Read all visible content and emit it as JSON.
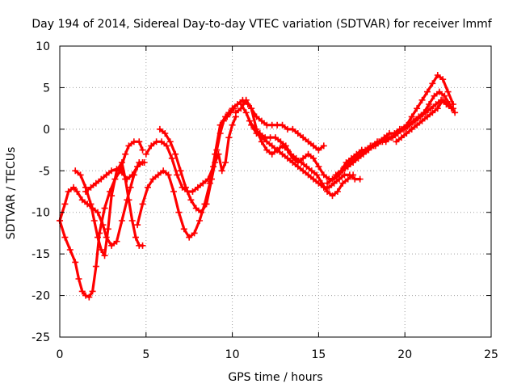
{
  "chart_data": {
    "type": "line",
    "title": "Day 194 of 2014, Sidereal Day-to-day VTEC variation (SDTVAR) for receiver lmmf",
    "xlabel": "GPS time / hours",
    "ylabel": "SDTVAR / TECUs",
    "xlim": [
      0,
      25
    ],
    "ylim": [
      -25,
      10
    ],
    "xticks": [
      0,
      5,
      10,
      15,
      20,
      25
    ],
    "yticks": [
      -25,
      -20,
      -15,
      -10,
      -5,
      0,
      5,
      10
    ],
    "xtick_labels": [
      "0",
      "5",
      "10",
      "15",
      "20",
      "25"
    ],
    "ytick_labels": [
      "-25",
      "-20",
      "-15",
      "-10",
      "-5",
      "0",
      "5",
      "10"
    ],
    "grid": true,
    "legend": "none",
    "marker": "+",
    "color": "#ff0000",
    "series": [
      {
        "name": "arc-1",
        "x": [
          0.0,
          0.3,
          0.6,
          0.9,
          1.1,
          1.3,
          1.5,
          1.7,
          1.9,
          2.1,
          2.3,
          2.6,
          2.9,
          3.2,
          3.5,
          3.8,
          4.0,
          4.3,
          4.6,
          4.8
        ],
        "y": [
          -11,
          -13,
          -14.5,
          -16,
          -18,
          -19.5,
          -20,
          -20.2,
          -19.5,
          -16.5,
          -12.5,
          -9.5,
          -7.5,
          -6,
          -5,
          -3,
          -2,
          -1.5,
          -1.5,
          -2.5
        ]
      },
      {
        "name": "arc-2",
        "x": [
          0.0,
          0.3,
          0.5,
          0.8,
          1.0,
          1.3,
          1.6,
          1.9,
          2.2,
          2.5,
          2.7,
          3.0,
          3.3,
          3.6,
          3.9,
          4.1,
          4.3,
          4.6,
          4.9
        ],
        "y": [
          -11,
          -9,
          -7.5,
          -7,
          -7.5,
          -8.5,
          -9,
          -9.5,
          -10,
          -11.5,
          -13,
          -14,
          -13.5,
          -11,
          -8.5,
          -7,
          -5.5,
          -4,
          -4
        ]
      },
      {
        "name": "arc-3",
        "x": [
          0.9,
          1.2,
          1.5,
          1.8,
          2.0,
          2.2,
          2.4,
          2.6,
          2.8,
          3.0,
          3.3,
          3.6,
          3.8,
          4.0,
          4.2,
          4.4,
          4.6,
          4.8
        ],
        "y": [
          -5,
          -5.5,
          -7,
          -9,
          -11,
          -13,
          -14.5,
          -15.2,
          -12,
          -8,
          -5,
          -4,
          -6,
          -8.5,
          -11,
          -13,
          -14,
          -14
        ]
      },
      {
        "name": "arc-4",
        "x": [
          1.5,
          1.8,
          2.1,
          2.4,
          2.7,
          3.0,
          3.3,
          3.6,
          3.9,
          4.2,
          4.5,
          4.8
        ],
        "y": [
          -7.5,
          -7,
          -6.5,
          -6,
          -5.5,
          -5,
          -4.8,
          -5.2,
          -6,
          -5.5,
          -4.5,
          -4
        ]
      },
      {
        "name": "arc-5",
        "x": [
          4.5,
          4.8,
          5.1,
          5.4,
          5.7,
          6.0,
          6.3,
          6.6,
          6.9,
          7.2,
          7.5,
          7.8,
          8.1,
          8.4,
          8.7,
          9.0,
          9.3,
          9.6,
          9.8,
          10.0,
          10.3,
          10.6,
          10.9
        ],
        "y": [
          -11.5,
          -9,
          -7,
          -6,
          -5.5,
          -5,
          -5.5,
          -7.5,
          -10,
          -12,
          -13,
          -12.5,
          -11,
          -9,
          -6.5,
          -3,
          0.5,
          1.5,
          2,
          2.5,
          3,
          3.5,
          3
        ]
      },
      {
        "name": "arc-6",
        "x": [
          5.0,
          5.3,
          5.6,
          5.9,
          6.2,
          6.5,
          6.8,
          7.1,
          7.4,
          7.7,
          8.0,
          8.3,
          8.6,
          8.9,
          9.1,
          9.3,
          9.5,
          9.7,
          9.9,
          10.1
        ],
        "y": [
          -3,
          -2,
          -1.5,
          -1.5,
          -2,
          -3.5,
          -5.5,
          -7,
          -7.5,
          -7.5,
          -7,
          -6.5,
          -6,
          -4.5,
          -2.5,
          -0.5,
          1,
          1.5,
          2,
          2.5
        ]
      },
      {
        "name": "arc-7",
        "x": [
          5.8,
          6.1,
          6.4,
          6.7,
          7.0,
          7.3,
          7.6,
          7.9,
          8.2,
          8.5,
          8.8,
          9.0,
          9.2,
          9.4,
          9.6,
          9.8,
          10.0,
          10.2
        ],
        "y": [
          0,
          -0.5,
          -1.5,
          -3,
          -5,
          -7,
          -8.5,
          -9.5,
          -10,
          -9,
          -6,
          -4,
          -3,
          -5,
          -4,
          -1,
          0.5,
          1.5
        ]
      },
      {
        "name": "arc-8",
        "x": [
          10.5,
          10.8,
          11.1,
          11.4,
          11.7,
          12.0,
          12.3,
          12.6,
          12.9,
          13.2,
          13.5,
          13.8,
          14.1,
          14.4,
          14.7,
          15.0,
          15.3,
          15.6,
          15.9,
          16.2,
          16.5,
          16.8,
          17.1,
          17.4
        ],
        "y": [
          3,
          2,
          0.5,
          -0.5,
          -1,
          -1.5,
          -2,
          -2.5,
          -3,
          -3.5,
          -4,
          -4.5,
          -5,
          -5.5,
          -6,
          -6.5,
          -7,
          -7,
          -6.5,
          -6,
          -5.5,
          -5.5,
          -6,
          -6
        ]
      },
      {
        "name": "arc-9",
        "x": [
          10.8,
          11.1,
          11.4,
          11.7,
          12.0,
          12.3,
          12.6,
          12.9,
          13.2,
          13.5,
          13.8,
          14.1,
          14.4,
          14.7,
          15.0,
          15.3
        ],
        "y": [
          3.5,
          2.5,
          1.5,
          1,
          0.5,
          0.5,
          0.5,
          0.5,
          0,
          0,
          -0.5,
          -1,
          -1.5,
          -2,
          -2.5,
          -2
        ]
      },
      {
        "name": "arc-10",
        "x": [
          11.0,
          11.3,
          11.6,
          11.9,
          12.2,
          12.5,
          12.8,
          13.1,
          13.4,
          13.7,
          14.0,
          14.3,
          14.6,
          14.9,
          15.2,
          15.5,
          15.8,
          16.1,
          16.4,
          16.7,
          17.0
        ],
        "y": [
          1,
          0,
          -0.5,
          -1,
          -1,
          -1,
          -1.5,
          -2,
          -3,
          -3.5,
          -4,
          -4.5,
          -5,
          -5.5,
          -6.5,
          -7.5,
          -8,
          -7.5,
          -6.5,
          -6,
          -5.5
        ]
      },
      {
        "name": "arc-11",
        "x": [
          10.2,
          10.5,
          10.8,
          11.1,
          11.4,
          11.7,
          12.0,
          12.3,
          12.6,
          12.9,
          13.2,
          13.5,
          13.8,
          14.1,
          14.4,
          14.7,
          15.0,
          15.3,
          15.6,
          15.9,
          16.2
        ],
        "y": [
          2,
          2.5,
          3.5,
          2.5,
          0,
          -1.5,
          -2.5,
          -3,
          -2.5,
          -2,
          -2.5,
          -3.5,
          -4,
          -3.5,
          -3,
          -3.5,
          -4.5,
          -5.5,
          -6,
          -6,
          -5.5
        ]
      },
      {
        "name": "arc-12",
        "x": [
          16.5,
          16.8,
          17.1,
          17.4,
          17.7,
          18.0,
          18.3,
          18.6,
          18.9,
          19.2,
          19.5,
          19.8,
          20.1,
          20.4,
          20.7,
          21.0,
          21.3,
          21.6,
          21.9,
          22.2,
          22.5,
          22.8
        ],
        "y": [
          -4.5,
          -4,
          -3.5,
          -3,
          -2.5,
          -2,
          -2,
          -1.5,
          -1.5,
          -1,
          -0.5,
          0,
          0.5,
          1.5,
          2.5,
          3.5,
          4.5,
          5.5,
          6.5,
          6,
          4.5,
          3
        ]
      },
      {
        "name": "arc-13",
        "x": [
          15.5,
          15.8,
          16.1,
          16.4,
          16.7,
          17.0,
          17.3,
          17.6,
          17.9,
          18.2,
          18.5,
          18.8,
          19.1,
          19.4,
          19.7,
          20.0,
          20.3,
          20.6,
          20.9,
          21.2,
          21.5,
          21.8,
          22.1,
          22.4,
          22.7
        ],
        "y": [
          -6.5,
          -6,
          -5.5,
          -5,
          -4.5,
          -4,
          -3.5,
          -3,
          -2.5,
          -2,
          -1.5,
          -1,
          -0.5,
          -0.5,
          0,
          0,
          0.5,
          1,
          1.5,
          2,
          2.5,
          3,
          3.5,
          3,
          2.5
        ]
      },
      {
        "name": "arc-14",
        "x": [
          16.0,
          16.3,
          16.6,
          16.9,
          17.2,
          17.5,
          17.8,
          18.1,
          18.4,
          18.7,
          19.0,
          19.3,
          19.6,
          19.9,
          20.2,
          20.5,
          20.8,
          21.1,
          21.4,
          21.7,
          22.0,
          22.3,
          22.6,
          22.9
        ],
        "y": [
          -5.5,
          -5,
          -4,
          -3.5,
          -3,
          -2.5,
          -2.5,
          -2,
          -1.5,
          -1.5,
          -1,
          -1,
          -0.5,
          0,
          0.5,
          1,
          1.5,
          2,
          3,
          4,
          4.5,
          4,
          3,
          2
        ]
      },
      {
        "name": "arc-15",
        "x": [
          19.5,
          19.8,
          20.1,
          20.4,
          20.7,
          21.0,
          21.3,
          21.6,
          21.9,
          22.2,
          22.5,
          22.8
        ],
        "y": [
          -1.5,
          -1,
          -0.5,
          0,
          0.5,
          1,
          1.5,
          2,
          2.5,
          3.5,
          3,
          2.5
        ]
      }
    ]
  }
}
